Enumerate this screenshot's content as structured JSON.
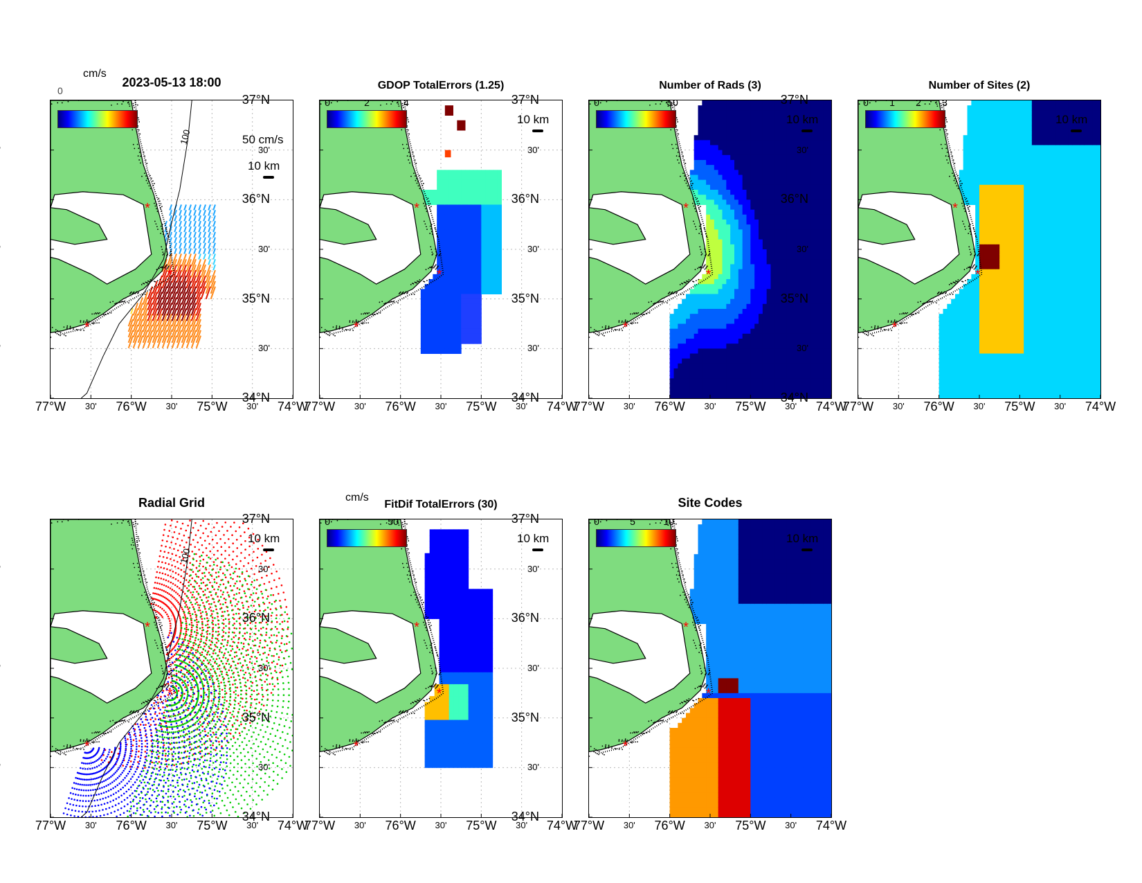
{
  "axes": {
    "lat_labels": [
      "37°N",
      "30'",
      "36°N",
      "30'",
      "35°N",
      "30'",
      "34°N"
    ],
    "lon_labels": [
      "77°W",
      "30'",
      "76°W",
      "30'",
      "75°W",
      "30'",
      "74°W"
    ]
  },
  "scale_label": "10 km",
  "site_marker": "*",
  "panels": {
    "vectors": {
      "title": "2023-05-13 18:00",
      "unit": "cm/s",
      "overlap_text": "0",
      "reference_label": "50 cm/s",
      "contour_label": "100",
      "colors": [
        "#2c6bff",
        "#1fa7ff",
        "#35d3ff",
        "#7fffa0",
        "#ffe23a",
        "#ff8a1a",
        "#e11a00",
        "#8b0000"
      ]
    },
    "gdop": {
      "title": "GDOP TotalErrors (1.25)",
      "colorbar_ticks": [
        "0",
        "2",
        "4"
      ],
      "contour_label": "1.25"
    },
    "rads": {
      "title": "Number of Rads (3)",
      "colorbar_ticks": [
        "0",
        "50"
      ],
      "contour_label": "3"
    },
    "sites": {
      "title": "Number of Sites (2)",
      "colorbar_ticks": [
        "0",
        "1",
        "2",
        "3"
      ],
      "contour_label": "2"
    },
    "radial": {
      "title": "Radial Grid",
      "contour_label": "100",
      "site_colors": [
        "#ff0000",
        "#00cc00",
        "#0000ff"
      ]
    },
    "fitdif": {
      "title": "FitDif TotalErrors (30)",
      "unit": "cm/s",
      "colorbar_ticks": [
        "0",
        "50"
      ],
      "contour_label": "30"
    },
    "codes": {
      "title": "Site Codes",
      "colorbar_ticks": [
        "0",
        "5",
        "10"
      ]
    }
  },
  "colors": {
    "land": "#7fdc7f",
    "coast": "#000000",
    "site": "#ff0000",
    "grid": "#b8b8b8"
  }
}
